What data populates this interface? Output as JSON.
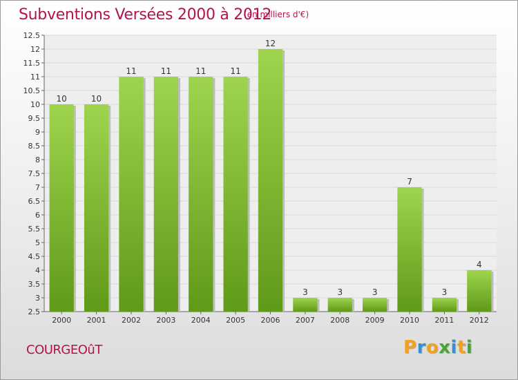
{
  "chart_data": {
    "type": "bar",
    "title": "Subventions Versées 2000 à 2012",
    "subtitle": "(en milliers d'€)",
    "categories": [
      "2000",
      "2001",
      "2002",
      "2003",
      "2004",
      "2005",
      "2006",
      "2007",
      "2008",
      "2009",
      "2010",
      "2011",
      "2012"
    ],
    "values": [
      10,
      10,
      11,
      11,
      11,
      11,
      12,
      3,
      3,
      3,
      7,
      3,
      4
    ],
    "ylim": [
      2.5,
      12.5
    ],
    "yticks": [
      "2.5",
      "3",
      "3.5",
      "4",
      "4.5",
      "5",
      "5.5",
      "6",
      "6.5",
      "7",
      "7.5",
      "8",
      "8.5",
      "9",
      "9.5",
      "10",
      "10.5",
      "11",
      "11.5",
      "12",
      "12.5"
    ],
    "grid": true,
    "bar_color": "#7ab52f",
    "xlabel": "",
    "ylabel": ""
  },
  "footer": {
    "commune": "COURGEOûT",
    "logo_letters": [
      "P",
      "r",
      "o",
      "x",
      "i",
      "t",
      "i"
    ],
    "logo_colors": [
      "#f0a21e",
      "#3a8fd0",
      "#f0a21e",
      "#4aa538",
      "#3a8fd0",
      "#f0a21e",
      "#4aa538"
    ]
  },
  "colors": {
    "title": "#b3124f",
    "grid": "#d8d8d8",
    "axis": "#666666"
  }
}
